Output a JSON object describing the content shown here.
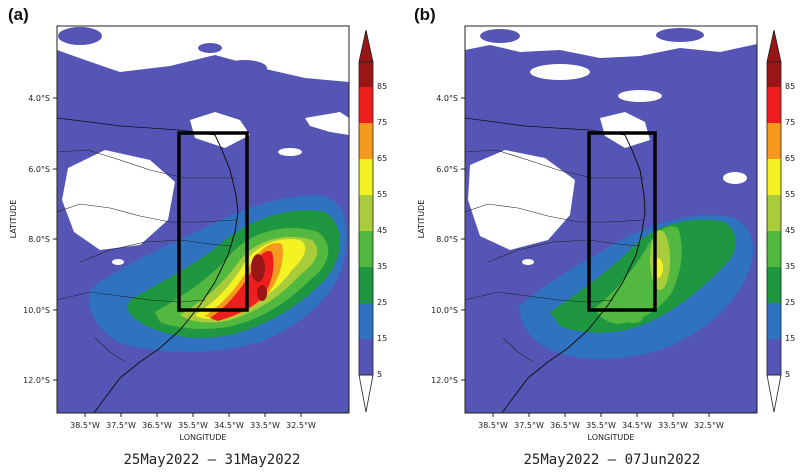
{
  "panels": [
    {
      "label": "(a)",
      "period": "25May2022 – 31May2022",
      "xlabel": "LONGITUDE",
      "ylabel": "LATITUDE",
      "x_ticks": [
        "38.5°W",
        "37.5°W",
        "36.5°W",
        "35.5°W",
        "34.5°W",
        "33.5°W",
        "32.5°W"
      ],
      "y_ticks": [
        "4.0°S",
        "6.0°S",
        "8.0°S",
        "10.0°S",
        "12.0°S"
      ],
      "colorbar_ticks": [
        "5",
        "15",
        "25",
        "35",
        "45",
        "55",
        "65",
        "75",
        "85"
      ]
    },
    {
      "label": "(b)",
      "period": "25May2022 – 07Jun2022",
      "xlabel": "LONGITUDE",
      "ylabel": "LATITUDE",
      "x_ticks": [
        "38.5°W",
        "37.5°W",
        "36.5°W",
        "35.5°W",
        "34.5°W",
        "33.5°W",
        "32.5°W"
      ],
      "y_ticks": [
        "4.0°S",
        "6.0°S",
        "8.0°S",
        "10.0°S",
        "12.0°S"
      ],
      "colorbar_ticks": [
        "5",
        "15",
        "25",
        "35",
        "45",
        "55",
        "65",
        "75",
        "85"
      ]
    }
  ],
  "colorbar_colors": [
    "#5555b5",
    "#2f72c0",
    "#1f9640",
    "#53b840",
    "#a9cd3a",
    "#f3f323",
    "#f59a1f",
    "#ee1e1e",
    "#9a1616"
  ]
}
